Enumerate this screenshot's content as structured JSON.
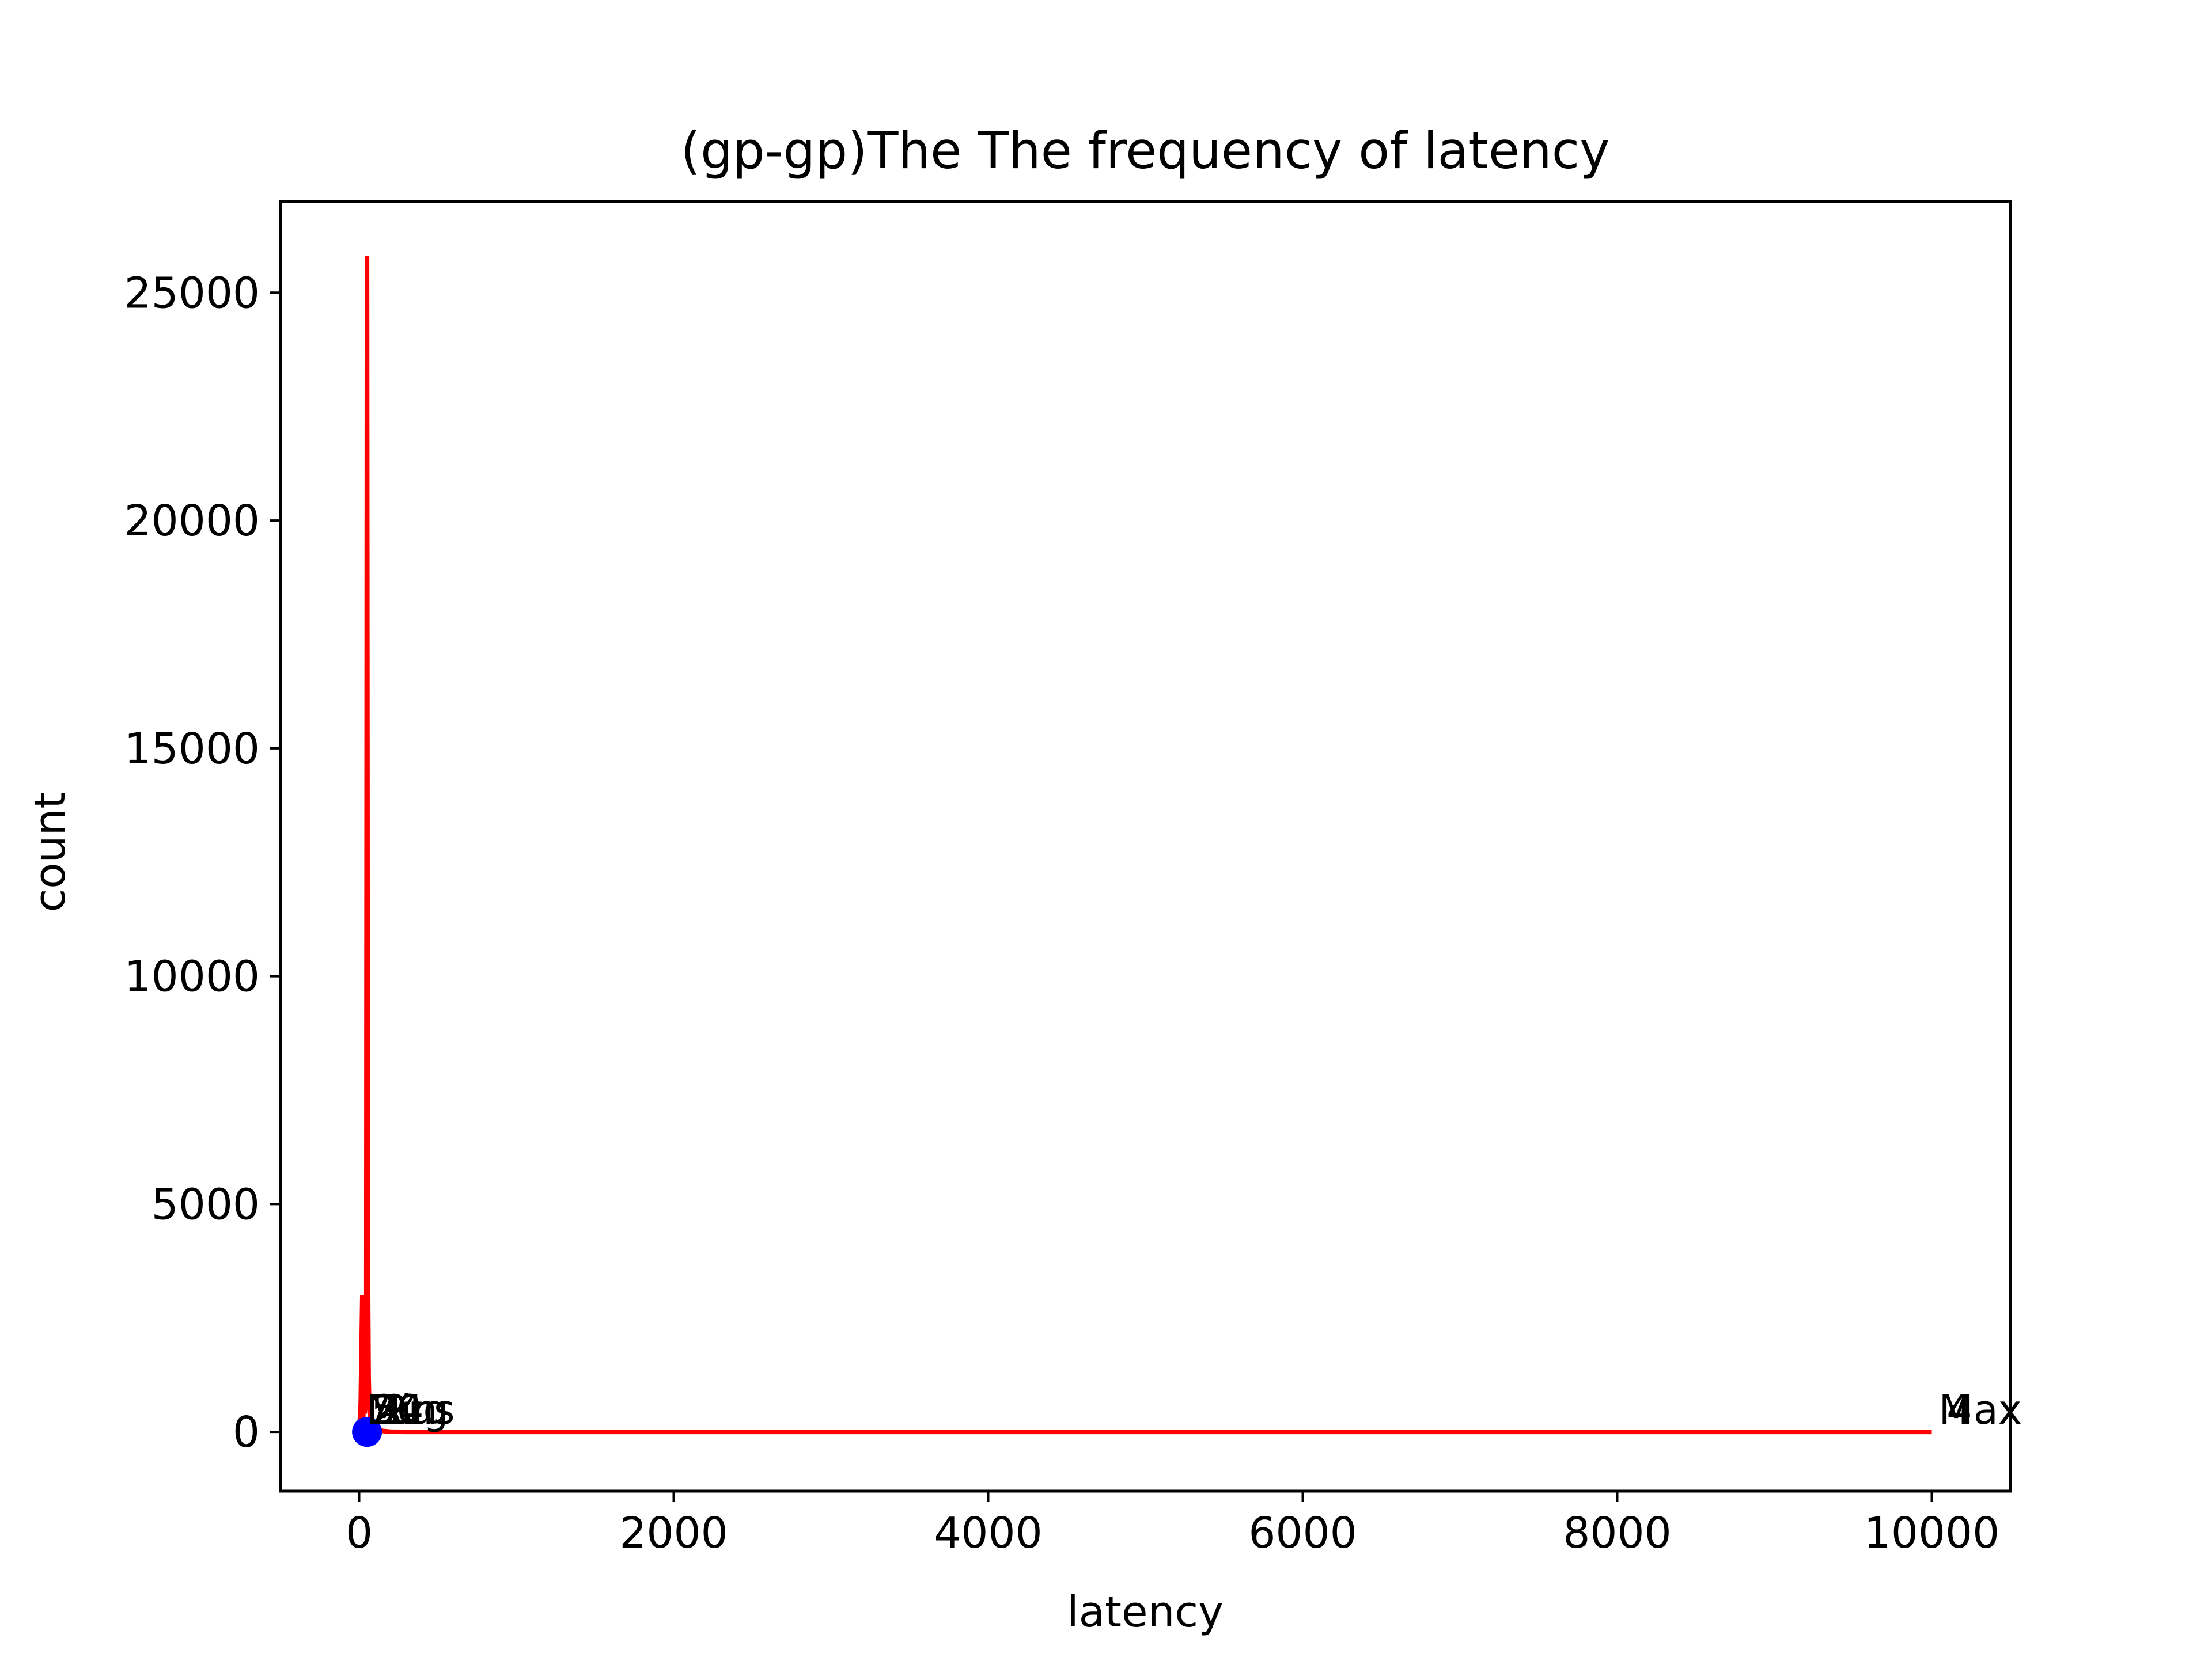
{
  "chart_data": {
    "type": "line",
    "title": "(gp-gp)The The frequency of latency",
    "xlabel": "latency",
    "ylabel": "count",
    "xlim": [
      -500,
      10500
    ],
    "ylim": [
      -1300,
      27000
    ],
    "xticks": [
      0,
      2000,
      4000,
      6000,
      8000,
      10000
    ],
    "xtick_labels": [
      "0",
      "2000",
      "4000",
      "6000",
      "8000",
      "10000"
    ],
    "yticks": [
      0,
      5000,
      10000,
      15000,
      20000,
      25000
    ],
    "ytick_labels": [
      "0",
      "5000",
      "10000",
      "15000",
      "20000",
      "25000"
    ],
    "grid": false,
    "series": [
      {
        "color": "#ff0000",
        "points": [
          [
            0,
            0
          ],
          [
            10,
            600
          ],
          [
            20,
            3000
          ],
          [
            25,
            200
          ],
          [
            30,
            900
          ],
          [
            35,
            400
          ],
          [
            40,
            1500
          ],
          [
            45,
            800
          ],
          [
            50,
            25800
          ],
          [
            55,
            4000
          ],
          [
            60,
            1200
          ],
          [
            65,
            500
          ],
          [
            70,
            300
          ],
          [
            80,
            150
          ],
          [
            100,
            80
          ],
          [
            150,
            20
          ],
          [
            200,
            5
          ],
          [
            300,
            0
          ],
          [
            1000,
            0
          ],
          [
            5000,
            0
          ],
          [
            10000,
            0
          ]
        ]
      }
    ],
    "markers": [
      {
        "x": 50,
        "y": 0,
        "color": "#0000ff"
      }
    ],
    "annotations": [
      {
        "text": "Min",
        "x": 0,
        "y": 0
      },
      {
        "text": "50",
        "x": 30,
        "y": 0
      },
      {
        "text": "24",
        "x": 40,
        "y": 0
      },
      {
        "text": "Avg",
        "x": 50,
        "y": 0
      },
      {
        "text": "2us",
        "x": 105,
        "y": 0
      },
      {
        "text": "Max",
        "x": 10000,
        "y": 0
      },
      {
        "text": "4",
        "x": 10050,
        "y": 0
      }
    ]
  }
}
